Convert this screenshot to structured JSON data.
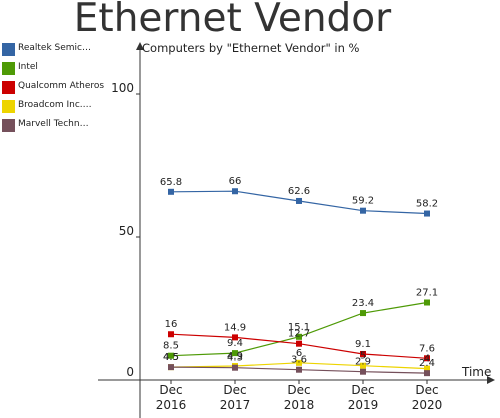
{
  "chart_data": {
    "type": "line",
    "title": "Ethernet Vendor",
    "subtitle": "Computers by \"Ethernet Vendor\" in %",
    "xlabel": "Time",
    "ylabel": "",
    "categories": [
      "Dec 2016",
      "Dec 2017",
      "Dec 2018",
      "Dec 2019",
      "Dec 2020"
    ],
    "x_tick_labels": [
      [
        "Dec",
        "2016"
      ],
      [
        "Dec",
        "2017"
      ],
      [
        "Dec",
        "2018"
      ],
      [
        "Dec",
        "2019"
      ],
      [
        "Dec",
        "2020"
      ]
    ],
    "y_ticks": [
      0,
      50,
      100
    ],
    "ylim": [
      0,
      100
    ],
    "grid": false,
    "legend_position": "top-left",
    "series": [
      {
        "name": "Realtek Semic…",
        "color": "#3465a4",
        "marker": "square",
        "values": [
          65.8,
          66,
          62.6,
          59.2,
          58.2
        ]
      },
      {
        "name": "Intel",
        "color": "#4e9a06",
        "marker": "square",
        "values": [
          8.5,
          9.4,
          15.1,
          23.4,
          27.1
        ]
      },
      {
        "name": "Qualcomm Atheros",
        "color": "#cc0000",
        "marker": "square",
        "values": [
          16,
          14.9,
          12.7,
          9.1,
          7.6
        ]
      },
      {
        "name": "Broadcom Inc.…",
        "color": "#edd400",
        "marker": "square",
        "values": [
          4.5,
          4.9,
          6,
          5,
          4
        ]
      },
      {
        "name": "Marvell Techn…",
        "color": "#75505b",
        "marker": "square",
        "values": [
          4.5,
          4.3,
          3.6,
          2.9,
          2.4
        ]
      }
    ]
  }
}
